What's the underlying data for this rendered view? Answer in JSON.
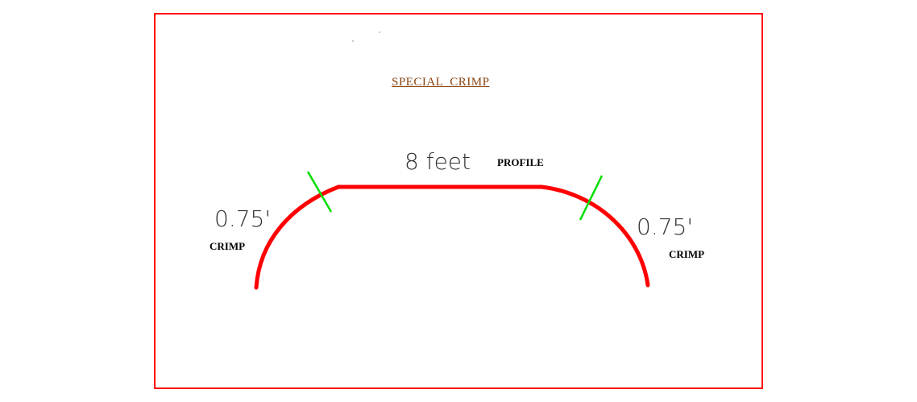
{
  "title": "SPECIAL  CRIMP",
  "labels": {
    "middle_length": "8 feet",
    "profile": "PROFILE",
    "left_crimp_length": "0.75'",
    "left_crimp": "CRIMP",
    "right_crimp_length": "0.75'",
    "right_crimp": "CRIMP"
  },
  "colors": {
    "frame": "#ff0000",
    "profile_line": "#ff0000",
    "markers": "#00dd00",
    "title": "#8b4513"
  }
}
